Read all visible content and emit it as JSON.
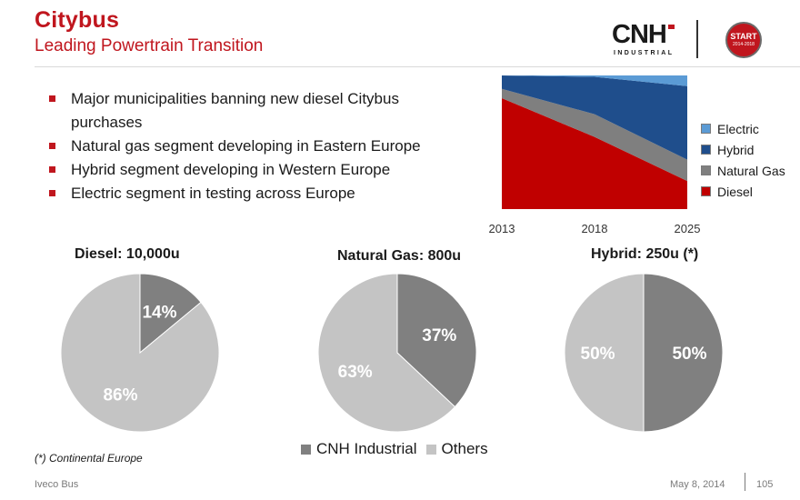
{
  "header": {
    "title": "Citybus",
    "subtitle": "Leading Powertrain Transition"
  },
  "logo": {
    "word": "CNH",
    "sub": "INDUSTRIAL",
    "badge_line1": "START",
    "badge_line2": "2014-2018"
  },
  "bullets": [
    "Major municipalities banning new diesel Citybus purchases",
    "Natural gas segment developing in Eastern Europe",
    "Hybrid segment developing in Western Europe",
    "Electric segment in testing across Europe"
  ],
  "colors": {
    "brand_red": "#c0161e",
    "diesel": "#c00000",
    "natural_gas": "#7f7f7f",
    "hybrid": "#1f4e8c",
    "electric": "#5b9bd5",
    "cnh_slice": "#808080",
    "others_slice": "#c4c4c4"
  },
  "chart_data": [
    {
      "type": "area",
      "stacked": true,
      "normalized_percent": true,
      "x": [
        "2013",
        "2018",
        "2025"
      ],
      "series": [
        {
          "name": "Diesel",
          "values": [
            83,
            54,
            21
          ]
        },
        {
          "name": "Natural Gas",
          "values": [
            7,
            17,
            16
          ]
        },
        {
          "name": "Hybrid",
          "values": [
            10,
            28,
            55
          ]
        },
        {
          "name": "Electric",
          "values": [
            0,
            1,
            8
          ]
        }
      ],
      "legend": [
        "Electric",
        "Hybrid",
        "Natural Gas",
        "Diesel"
      ],
      "legend_position": "right",
      "ylim": [
        0,
        100
      ],
      "grid": false
    },
    {
      "type": "pie",
      "title": "Diesel: 10,000u",
      "labels": [
        "CNH Industrial",
        "Others"
      ],
      "values": [
        14,
        86
      ],
      "value_labels": [
        "14%",
        "86%"
      ]
    },
    {
      "type": "pie",
      "title": "Natural Gas: 800u",
      "labels": [
        "CNH Industrial",
        "Others"
      ],
      "values": [
        37,
        63
      ],
      "value_labels": [
        "37%",
        "63%"
      ]
    },
    {
      "type": "pie",
      "title": "Hybrid: 250u (*)",
      "labels": [
        "CNH Industrial",
        "Others"
      ],
      "values": [
        50,
        50
      ],
      "value_labels": [
        "50%",
        "50%"
      ]
    }
  ],
  "pie_legend": {
    "cnh": "CNH Industrial",
    "others": "Others"
  },
  "footnote": "(*) Continental Europe",
  "footer": {
    "left": "Iveco Bus",
    "date": "May 8, 2014",
    "page": "105"
  }
}
